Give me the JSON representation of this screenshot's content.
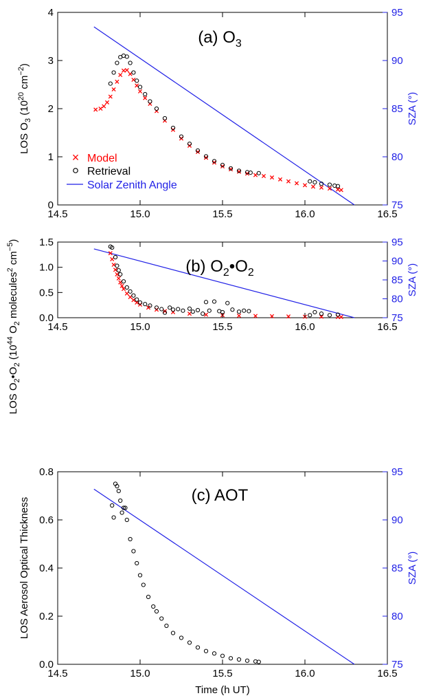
{
  "colors": {
    "model": "#ff0000",
    "retrieval": "#000000",
    "sza": "#1f1fe6",
    "axis": "#000000"
  },
  "legend": {
    "model": "Model",
    "retrieval": "Retrieval",
    "sza": "Solar Zenith Angle",
    "model_marker": "×"
  },
  "xaxis": {
    "label": "Time (h UT)",
    "ticks": [
      14.5,
      15.0,
      15.5,
      16.0,
      16.5
    ],
    "tick_labels": [
      "14.5",
      "15.0",
      "15.5",
      "16.0",
      "16.5"
    ],
    "range": [
      14.5,
      16.5
    ]
  },
  "panels": [
    {
      "title_main": "(a) O",
      "title_sub": "3",
      "ylabel": {
        "t1": "LOS O",
        "s1": "3",
        "t2": " (10",
        "p1": "20",
        "t3": " cm",
        "p2": "−2",
        "t4": ")"
      },
      "y2label": "SZA (°)",
      "yticks": [
        0,
        1,
        2,
        3,
        4
      ],
      "ytick_labels": [
        "0",
        "1",
        "2",
        "3",
        "4"
      ],
      "y2ticks": [
        75,
        80,
        85,
        90,
        95
      ],
      "y2tick_labels": [
        "75",
        "80",
        "85",
        "90",
        "95"
      ]
    },
    {
      "title_main": "(b) O",
      "title_sub": "2",
      "title_mid": "•O",
      "title_sub2": "2",
      "ylabel": {
        "t1": "LOS O",
        "s1": "2",
        "t2": "•O",
        "s2": "2",
        "t3": " (10",
        "p1": "44",
        "t4": " O",
        "s3": "2",
        "t5": " molecules",
        "p2": "2",
        "t6": " cm",
        "p3": "−5",
        "t7": ")"
      },
      "y2label": "SZA (°)",
      "yticks": [
        0.0,
        0.5,
        1.0,
        1.5
      ],
      "ytick_labels": [
        "0.0",
        "0.5",
        "1.0",
        "1.5"
      ],
      "y2ticks": [
        75,
        80,
        85,
        90,
        95
      ],
      "y2tick_labels": [
        "75",
        "80",
        "85",
        "90",
        "95"
      ]
    },
    {
      "title_main": "(c) AOT",
      "ylabel_text": "LOS Aerosol Optical Thickness",
      "y2label": "SZA (°)",
      "yticks": [
        0.0,
        0.2,
        0.4,
        0.6,
        0.8
      ],
      "ytick_labels": [
        "0.0",
        "0.2",
        "0.4",
        "0.6",
        "0.8"
      ],
      "y2ticks": [
        75,
        80,
        85,
        90,
        95
      ],
      "y2tick_labels": [
        "75",
        "80",
        "85",
        "90",
        "95"
      ]
    }
  ],
  "chart_data": [
    {
      "type": "scatter",
      "title": "(a) O3",
      "xlabel": "",
      "ylabel": "LOS O3 (10^20 cm^-2)",
      "y2label": "SZA (°)",
      "xlim": [
        14.5,
        16.5
      ],
      "ylim": [
        0,
        4
      ],
      "y2lim": [
        75,
        95
      ],
      "legend_position": "lower-left",
      "series": [
        {
          "name": "Model",
          "marker": "x",
          "x": [
            14.73,
            14.76,
            14.78,
            14.8,
            14.82,
            14.84,
            14.86,
            14.88,
            14.9,
            14.92,
            14.94,
            14.96,
            14.98,
            15.0,
            15.03,
            15.06,
            15.1,
            15.15,
            15.2,
            15.25,
            15.3,
            15.35,
            15.4,
            15.45,
            15.5,
            15.55,
            15.6,
            15.65,
            15.7,
            15.75,
            15.8,
            15.85,
            15.9,
            15.95,
            16.0,
            16.05,
            16.1,
            16.15,
            16.2,
            16.22
          ],
          "y": [
            1.98,
            2.0,
            2.05,
            2.13,
            2.25,
            2.4,
            2.56,
            2.7,
            2.79,
            2.8,
            2.72,
            2.6,
            2.48,
            2.36,
            2.22,
            2.1,
            1.95,
            1.75,
            1.56,
            1.38,
            1.23,
            1.1,
            0.98,
            0.88,
            0.8,
            0.74,
            0.69,
            0.65,
            0.62,
            0.6,
            0.57,
            0.53,
            0.49,
            0.45,
            0.41,
            0.38,
            0.36,
            0.34,
            0.32,
            0.31
          ]
        },
        {
          "name": "Retrieval",
          "marker": "o",
          "x": [
            14.82,
            14.84,
            14.86,
            14.88,
            14.9,
            14.92,
            14.94,
            14.96,
            14.98,
            15.0,
            15.03,
            15.06,
            15.1,
            15.15,
            15.2,
            15.25,
            15.3,
            15.35,
            15.4,
            15.45,
            15.5,
            15.55,
            15.6,
            15.65,
            15.67,
            15.72,
            16.03,
            16.06,
            16.1,
            16.15,
            16.18,
            16.2
          ],
          "y": [
            2.52,
            2.75,
            2.95,
            3.07,
            3.1,
            3.08,
            2.95,
            2.75,
            2.58,
            2.45,
            2.3,
            2.15,
            2.0,
            1.8,
            1.6,
            1.42,
            1.27,
            1.13,
            1.01,
            0.91,
            0.83,
            0.76,
            0.71,
            0.68,
            0.67,
            0.66,
            0.49,
            0.47,
            0.44,
            0.42,
            0.4,
            0.39
          ]
        }
      ],
      "sza_line": {
        "name": "Solar Zenith Angle",
        "x": [
          14.72,
          16.3
        ],
        "y": [
          93.5,
          75
        ]
      }
    },
    {
      "type": "scatter",
      "title": "(b) O2•O2",
      "xlabel": "",
      "ylabel": "LOS O2•O2 (10^44 O2 molecules^2 cm^-5)",
      "y2label": "SZA (°)",
      "xlim": [
        14.5,
        16.5
      ],
      "ylim": [
        0,
        1.5
      ],
      "y2lim": [
        75,
        95
      ],
      "series": [
        {
          "name": "Model",
          "marker": "x",
          "x": [
            14.82,
            14.83,
            14.84,
            14.85,
            14.86,
            14.87,
            14.88,
            14.89,
            14.9,
            14.92,
            14.94,
            14.96,
            14.98,
            15.0,
            15.05,
            15.1,
            15.15,
            15.2,
            15.3,
            15.4,
            15.5,
            15.6,
            15.7,
            15.8,
            15.9,
            16.0,
            16.1,
            16.2,
            16.22
          ],
          "y": [
            1.28,
            1.16,
            1.05,
            0.95,
            0.86,
            0.78,
            0.7,
            0.63,
            0.57,
            0.48,
            0.41,
            0.35,
            0.3,
            0.26,
            0.2,
            0.16,
            0.13,
            0.11,
            0.08,
            0.06,
            0.05,
            0.04,
            0.035,
            0.03,
            0.025,
            0.02,
            0.02,
            0.015,
            0.015
          ]
        },
        {
          "name": "Retrieval",
          "marker": "o",
          "x": [
            14.82,
            14.83,
            14.85,
            14.86,
            14.87,
            14.88,
            14.9,
            14.92,
            14.94,
            14.96,
            14.98,
            15.0,
            15.03,
            15.06,
            15.1,
            15.13,
            15.15,
            15.18,
            15.2,
            15.23,
            15.26,
            15.3,
            15.32,
            15.35,
            15.38,
            15.4,
            15.42,
            15.45,
            15.48,
            15.5,
            15.53,
            15.56,
            15.6,
            15.63,
            15.66,
            16.03,
            16.06,
            16.1,
            16.15,
            16.2
          ],
          "y": [
            1.41,
            1.39,
            1.2,
            1.03,
            0.94,
            0.86,
            0.72,
            0.6,
            0.52,
            0.44,
            0.36,
            0.3,
            0.27,
            0.24,
            0.2,
            0.17,
            0.1,
            0.2,
            0.16,
            0.17,
            0.14,
            0.18,
            0.12,
            0.15,
            0.08,
            0.31,
            0.14,
            0.32,
            0.13,
            0.11,
            0.29,
            0.16,
            0.12,
            0.14,
            0.13,
            0.05,
            0.11,
            0.08,
            0.05,
            0.06
          ]
        }
      ],
      "sza_line": {
        "name": "Solar Zenith Angle",
        "x": [
          14.72,
          16.3
        ],
        "y": [
          93.2,
          75
        ]
      }
    },
    {
      "type": "scatter",
      "title": "(c) AOT",
      "xlabel": "Time (h UT)",
      "ylabel": "LOS Aerosol Optical Thickness",
      "y2label": "SZA (°)",
      "xlim": [
        14.5,
        16.5
      ],
      "ylim": [
        0,
        0.8
      ],
      "y2lim": [
        75,
        95
      ],
      "series": [
        {
          "name": "Retrieval",
          "marker": "o",
          "x": [
            14.83,
            14.84,
            14.85,
            14.86,
            14.87,
            14.88,
            14.89,
            14.9,
            14.91,
            14.92,
            14.94,
            14.96,
            14.98,
            15.0,
            15.02,
            15.05,
            15.08,
            15.1,
            15.13,
            15.16,
            15.2,
            15.25,
            15.3,
            15.35,
            15.4,
            15.45,
            15.5,
            15.55,
            15.6,
            15.65,
            15.7,
            15.72
          ],
          "y": [
            0.66,
            0.61,
            0.75,
            0.74,
            0.72,
            0.68,
            0.63,
            0.65,
            0.65,
            0.6,
            0.52,
            0.47,
            0.42,
            0.37,
            0.33,
            0.28,
            0.24,
            0.22,
            0.19,
            0.16,
            0.13,
            0.11,
            0.09,
            0.07,
            0.055,
            0.045,
            0.035,
            0.025,
            0.02,
            0.015,
            0.012,
            0.01
          ]
        }
      ],
      "sza_line": {
        "name": "Solar Zenith Angle",
        "x": [
          14.72,
          16.3
        ],
        "y": [
          93.2,
          75
        ]
      }
    }
  ]
}
